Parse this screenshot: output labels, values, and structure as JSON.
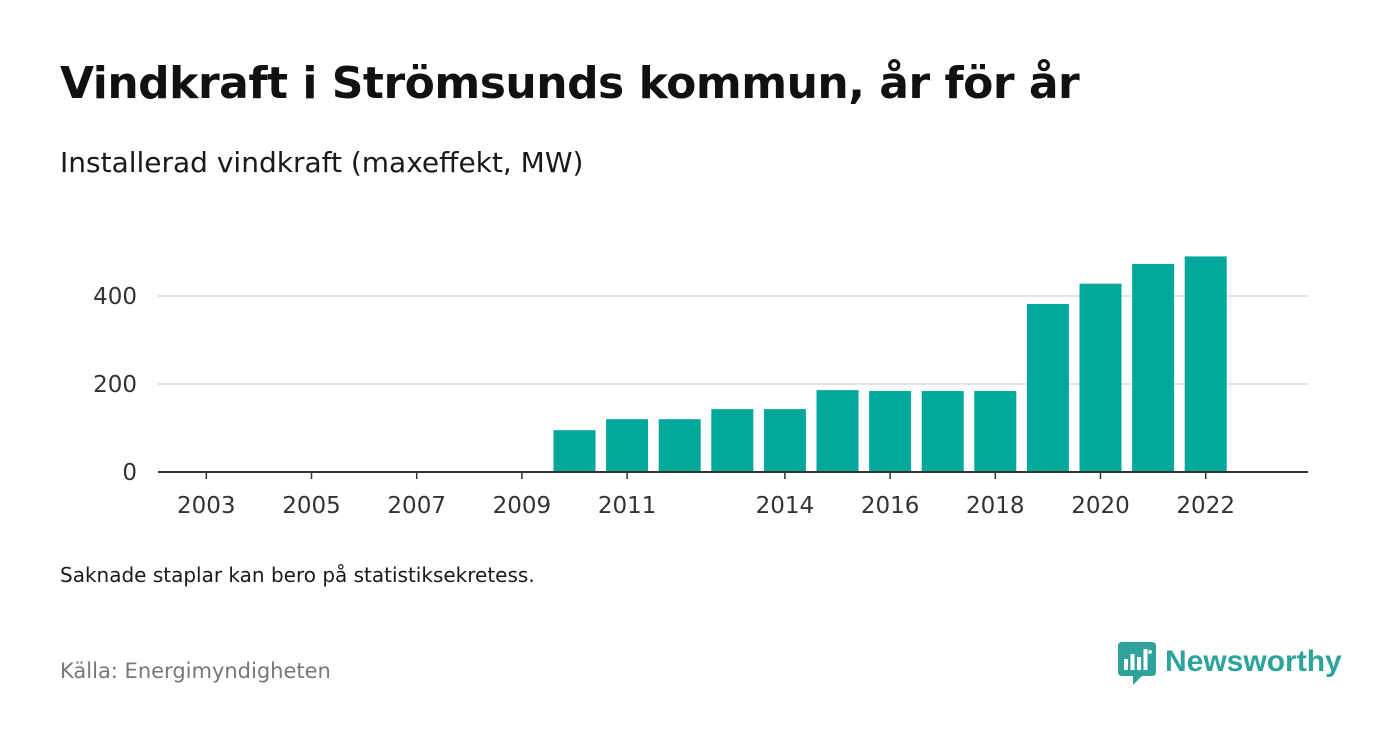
{
  "chart_data": {
    "type": "bar",
    "title": "Vindkraft i Strömsunds kommun, år för år",
    "subtitle": "Installerad vindkraft (maxeffekt, MW)",
    "xlabel": "",
    "ylabel": "",
    "categories": [
      "2003",
      "2004",
      "2005",
      "2006",
      "2007",
      "2008",
      "2009",
      "2010",
      "2011",
      "2012",
      "2013",
      "2014",
      "2015",
      "2016",
      "2017",
      "2018",
      "2019",
      "2020",
      "2021",
      "2022"
    ],
    "values": [
      0,
      0,
      0,
      0,
      0,
      0,
      0,
      95,
      120,
      120,
      143,
      143,
      186,
      184,
      184,
      184,
      382,
      428,
      473,
      490
    ],
    "x_tick_labels": [
      "2003",
      "2005",
      "2007",
      "2009",
      "2011",
      "2014",
      "2016",
      "2018",
      "2020",
      "2022"
    ],
    "y_ticks": [
      0,
      200,
      400
    ],
    "ylim": [
      0,
      500
    ],
    "grid": "horizontal",
    "bar_color": "#00a89b",
    "legend": "none"
  },
  "note": "Saknade staplar kan bero på statistiksekretess.",
  "source": "Källa: Energimyndigheten",
  "brand": {
    "name": "Newsworthy",
    "icon": "newsworthy-logo-icon",
    "color": "#2ea39b"
  }
}
